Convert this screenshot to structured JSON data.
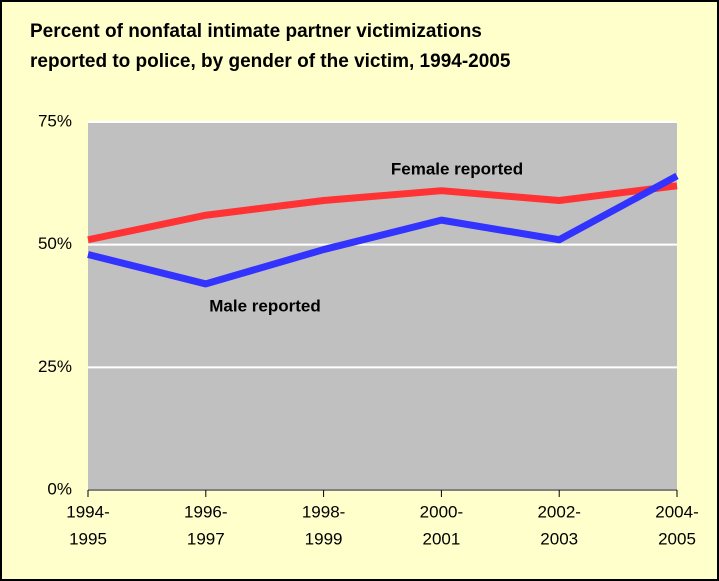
{
  "chart_data": {
    "type": "line",
    "title": [
      "Percent of nonfatal intimate partner victimizations",
      "reported to police, by gender of the victim, 1994-2005"
    ],
    "categories": [
      [
        "1994-",
        "1995"
      ],
      [
        "1996-",
        "1997"
      ],
      [
        "1998-",
        "1999"
      ],
      [
        "2000-",
        "2001"
      ],
      [
        "2002-",
        "2003"
      ],
      [
        "2004-",
        "2005"
      ]
    ],
    "series": [
      {
        "name": "Female reported",
        "color": "#ff3333",
        "values": [
          51,
          56,
          59,
          61,
          59,
          62
        ]
      },
      {
        "name": "Male reported",
        "color": "#3333ff",
        "values": [
          48,
          42,
          49,
          55,
          51,
          64
        ]
      }
    ],
    "ylim": [
      0,
      75
    ],
    "yticks": [
      {
        "value": 0,
        "label": "0%"
      },
      {
        "value": 25,
        "label": "25%"
      },
      {
        "value": 50,
        "label": "50%"
      },
      {
        "value": 75,
        "label": "75%"
      }
    ],
    "grid": true
  }
}
